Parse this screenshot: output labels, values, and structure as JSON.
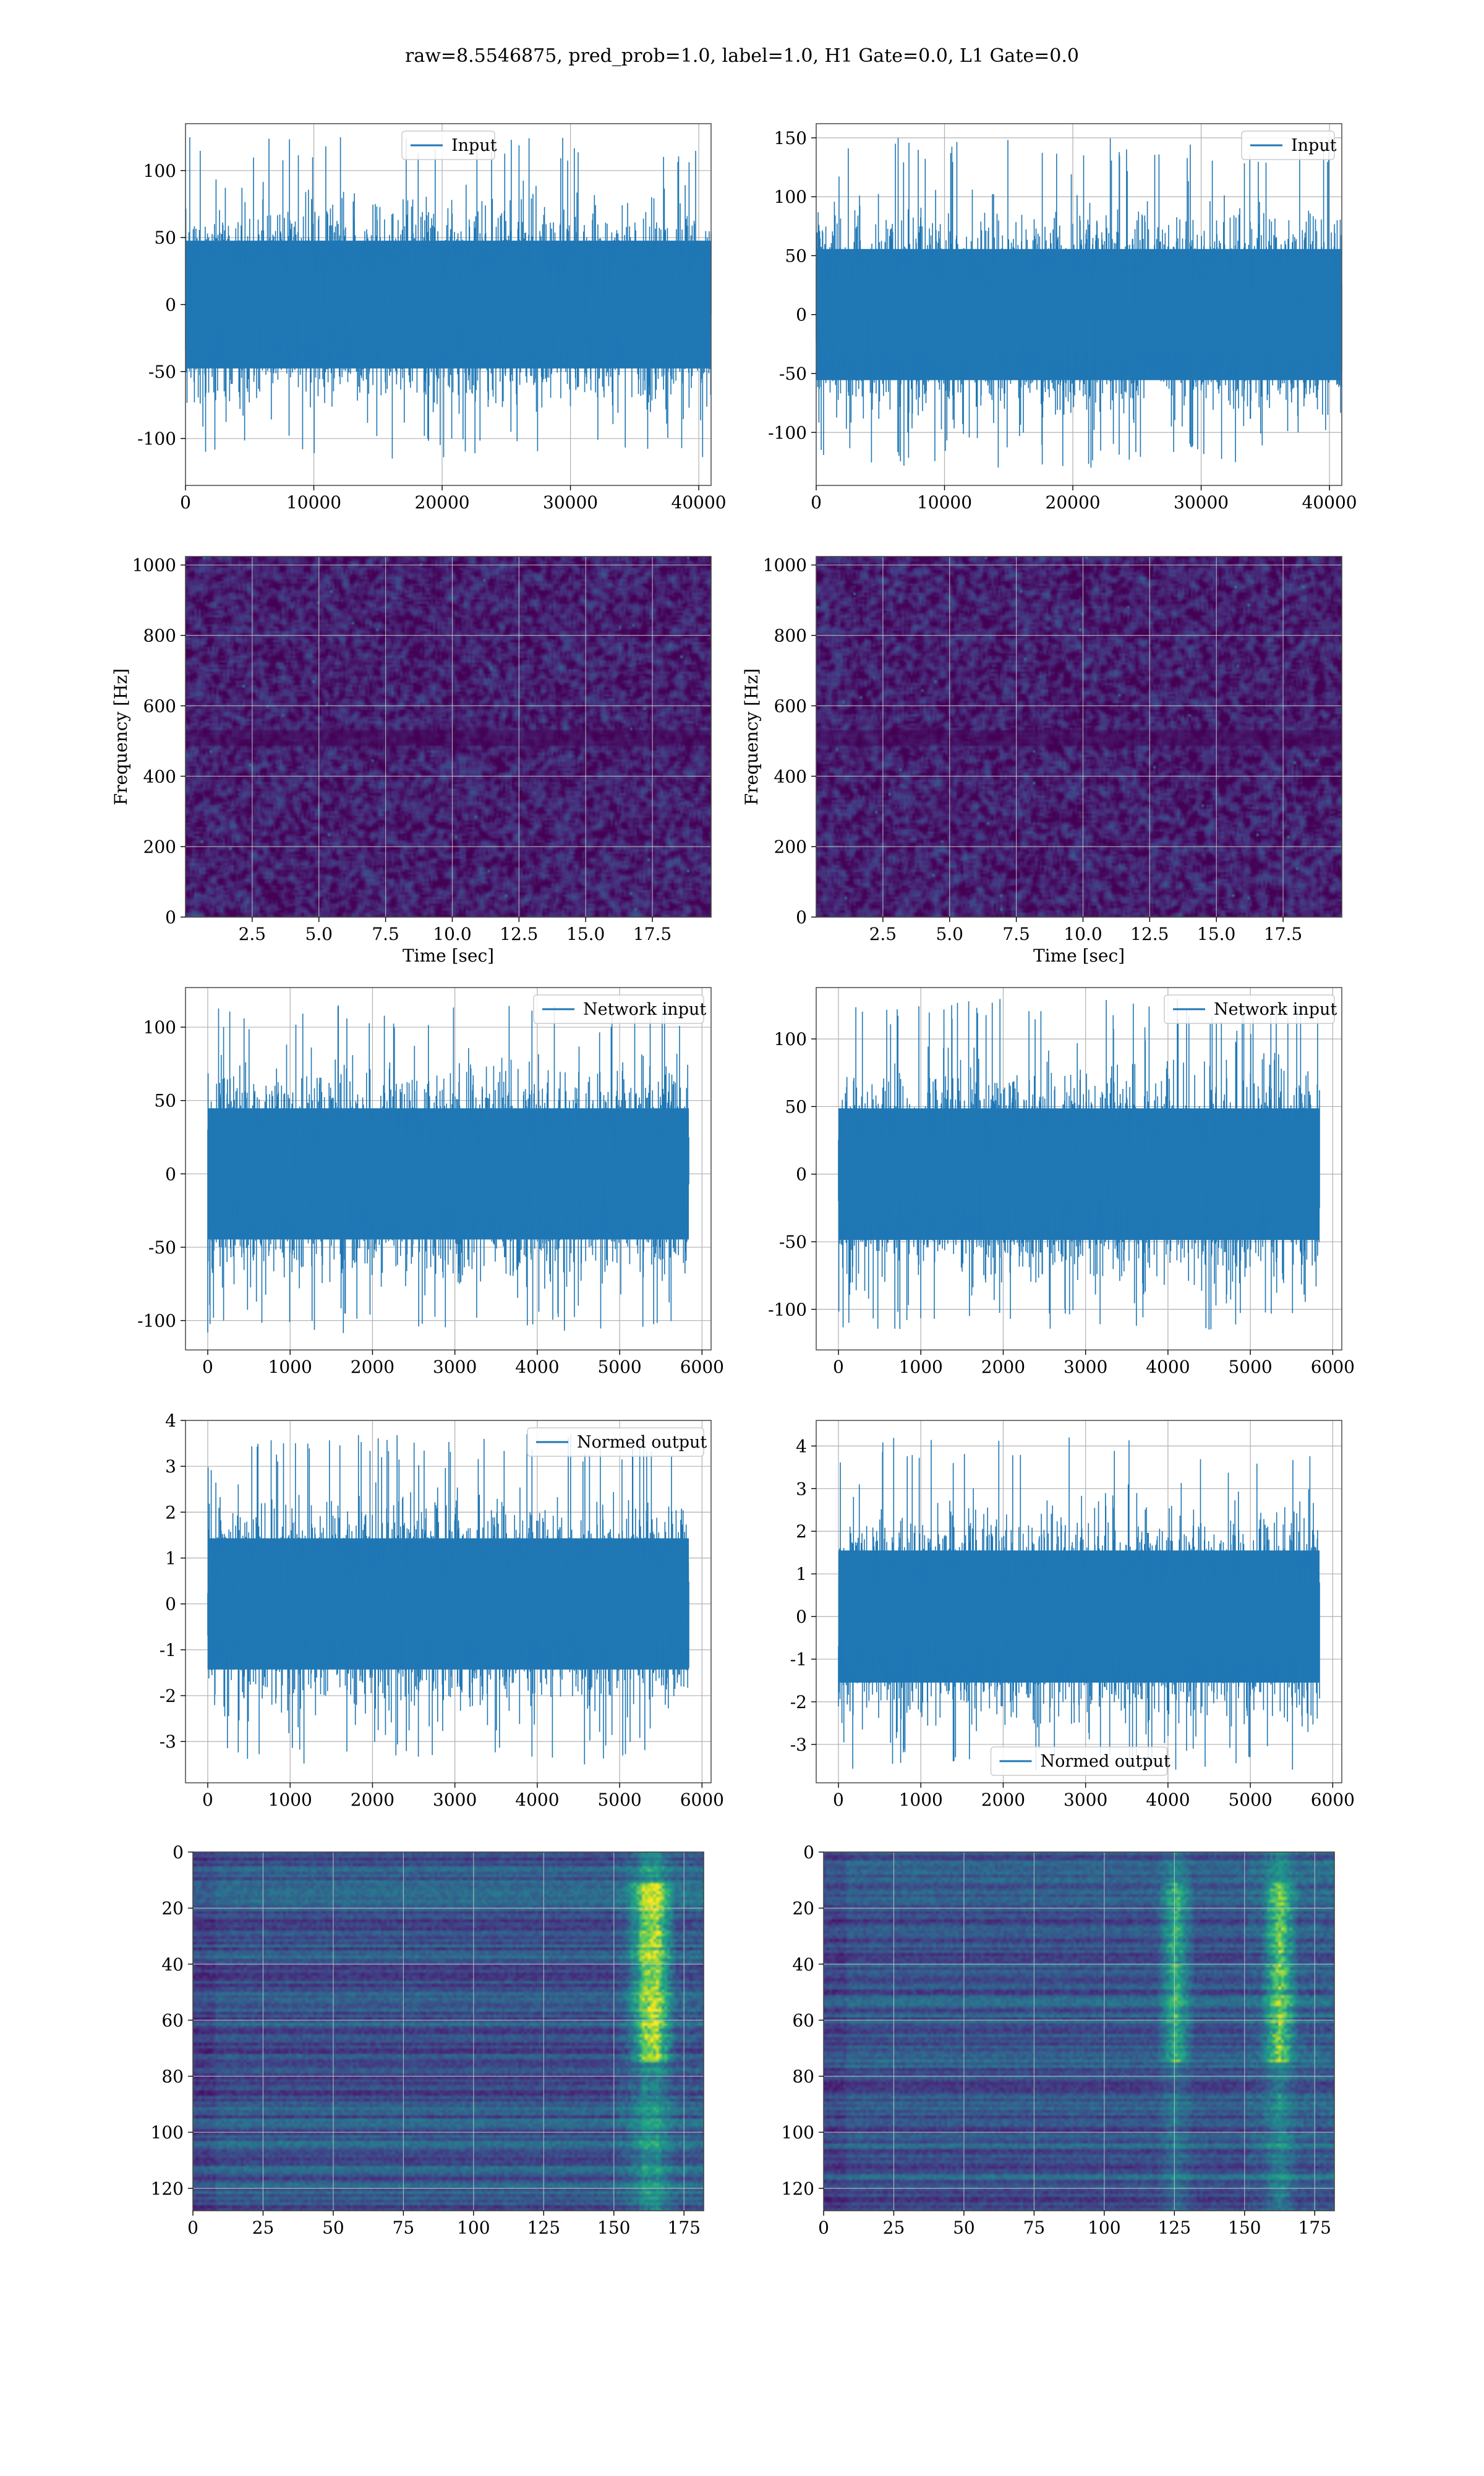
{
  "figure": {
    "suptitle": "raw=8.5546875, pred_prob=1.0, label=1.0, H1 Gate=0.0, L1 Gate=0.0",
    "line_color": "#1f77b4"
  },
  "chart_data": [
    {
      "id": "input-h1",
      "type": "line",
      "series": [
        {
          "name": "Input",
          "n_points": 40960,
          "approx_range": [
            -115,
            125
          ]
        }
      ],
      "xlim": [
        0,
        40960
      ],
      "ylim": [
        -135,
        135
      ],
      "xticks": [
        0,
        10000,
        20000,
        30000,
        40000
      ],
      "yticks": [
        -100,
        -50,
        0,
        50,
        100
      ],
      "legend": "upper center",
      "grid": true
    },
    {
      "id": "input-l1",
      "type": "line",
      "series": [
        {
          "name": "Input",
          "n_points": 40960,
          "approx_range": [
            -130,
            150
          ]
        }
      ],
      "xlim": [
        0,
        40960
      ],
      "ylim": [
        -145,
        162
      ],
      "xticks": [
        0,
        10000,
        20000,
        30000,
        40000
      ],
      "yticks": [
        -100,
        -50,
        0,
        50,
        100,
        150
      ],
      "legend": "upper right",
      "grid": true
    },
    {
      "id": "spec-h1",
      "type": "heatmap",
      "xlabel": "Time [sec]",
      "ylabel": "Frequency [Hz]",
      "xlim": [
        0,
        19.7
      ],
      "ylim": [
        0,
        1024
      ],
      "xticks": [
        2.5,
        5.0,
        7.5,
        10.0,
        12.5,
        15.0,
        17.5
      ],
      "yticks": [
        0,
        200,
        400,
        600,
        800,
        1000
      ],
      "colormap": "viridis",
      "grid": true
    },
    {
      "id": "spec-l1",
      "type": "heatmap",
      "xlabel": "Time [sec]",
      "ylabel": "Frequency [Hz]",
      "xlim": [
        0,
        19.7
      ],
      "ylim": [
        0,
        1024
      ],
      "xticks": [
        2.5,
        5.0,
        7.5,
        10.0,
        12.5,
        15.0,
        17.5
      ],
      "yticks": [
        0,
        200,
        400,
        600,
        800,
        1000
      ],
      "colormap": "viridis",
      "grid": true
    },
    {
      "id": "netin-h1",
      "type": "line",
      "series": [
        {
          "name": "Network input",
          "n_points": 5840,
          "approx_range": [
            -110,
            115
          ]
        }
      ],
      "xlim": [
        -270,
        6110
      ],
      "ylim": [
        -120,
        127
      ],
      "xticks": [
        0,
        1000,
        2000,
        3000,
        4000,
        5000,
        6000
      ],
      "yticks": [
        -100,
        -50,
        0,
        50,
        100
      ],
      "legend": "upper right",
      "grid": true
    },
    {
      "id": "netin-l1",
      "type": "line",
      "series": [
        {
          "name": "Network input",
          "n_points": 5840,
          "approx_range": [
            -115,
            130
          ]
        }
      ],
      "xlim": [
        -270,
        6110
      ],
      "ylim": [
        -130,
        138
      ],
      "xticks": [
        0,
        1000,
        2000,
        3000,
        4000,
        5000,
        6000
      ],
      "yticks": [
        -100,
        -50,
        0,
        50,
        100
      ],
      "legend": "upper right",
      "grid": true
    },
    {
      "id": "normed-h1",
      "type": "line",
      "series": [
        {
          "name": "Normed output",
          "n_points": 5840,
          "approx_range": [
            -3.5,
            3.7
          ]
        }
      ],
      "xlim": [
        -270,
        6110
      ],
      "ylim": [
        -3.9,
        4.0
      ],
      "xticks": [
        0,
        1000,
        2000,
        3000,
        4000,
        5000,
        6000
      ],
      "yticks": [
        -3,
        -2,
        -1,
        0,
        1,
        2,
        3,
        4
      ],
      "legend": "upper right",
      "grid": true
    },
    {
      "id": "normed-l1",
      "type": "line",
      "series": [
        {
          "name": "Normed output",
          "n_points": 5840,
          "approx_range": [
            -3.6,
            4.2
          ]
        }
      ],
      "xlim": [
        -270,
        6110
      ],
      "ylim": [
        -3.9,
        4.6
      ],
      "xticks": [
        0,
        1000,
        2000,
        3000,
        4000,
        5000,
        6000
      ],
      "yticks": [
        -3,
        -2,
        -1,
        0,
        1,
        2,
        3,
        4
      ],
      "legend": "lower center",
      "grid": true
    },
    {
      "id": "feat-h1",
      "type": "heatmap",
      "xlim": [
        0,
        182
      ],
      "ylim": [
        128,
        0
      ],
      "xticks": [
        0,
        25,
        50,
        75,
        100,
        125,
        150,
        175
      ],
      "yticks": [
        0,
        20,
        40,
        60,
        80,
        100,
        120
      ],
      "colormap": "viridis",
      "grid": true,
      "hot_columns": [
        160,
        165
      ]
    },
    {
      "id": "feat-l1",
      "type": "heatmap",
      "xlim": [
        0,
        182
      ],
      "ylim": [
        128,
        0
      ],
      "xticks": [
        0,
        25,
        50,
        75,
        100,
        125,
        150,
        175
      ],
      "yticks": [
        0,
        20,
        40,
        60,
        80,
        100,
        120
      ],
      "colormap": "viridis",
      "grid": true,
      "hot_columns": [
        125,
        162
      ]
    }
  ]
}
